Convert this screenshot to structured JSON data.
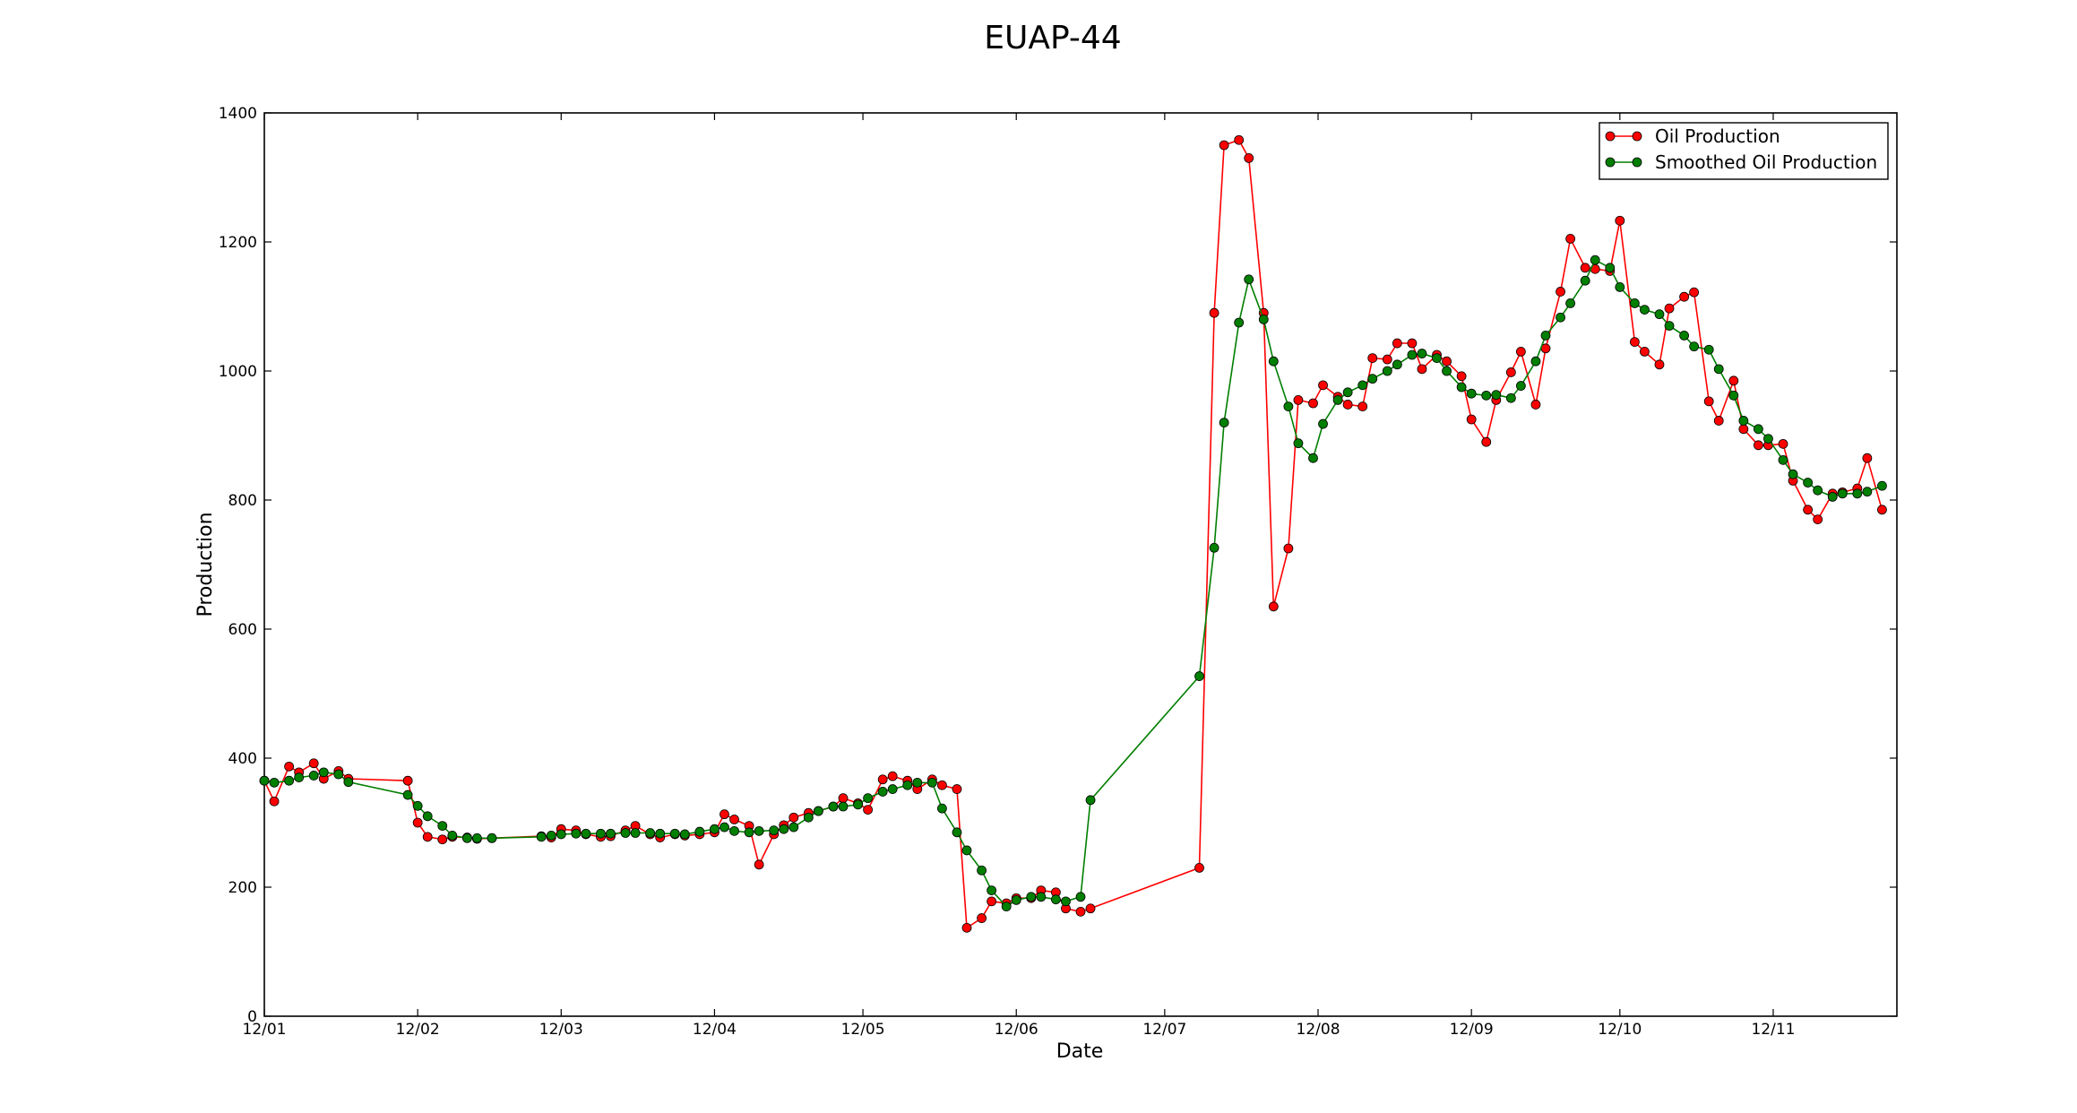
{
  "chart_data": {
    "type": "line",
    "title": "EUAP-44",
    "xlabel": "Date",
    "ylabel": "Production",
    "xlim": [
      "2012-01-01",
      "2012-11-26"
    ],
    "ylim": [
      0,
      1400
    ],
    "x_tick_values": [
      "2012-01-01",
      "2012-02-01",
      "2012-03-01",
      "2012-04-01",
      "2012-05-01",
      "2012-06-01",
      "2012-07-01",
      "2012-08-01",
      "2012-09-01",
      "2012-10-01",
      "2012-11-01"
    ],
    "x_tick_labels": [
      "12/01",
      "12/02",
      "12/03",
      "12/04",
      "12/05",
      "12/06",
      "12/07",
      "12/08",
      "12/09",
      "12/10",
      "12/11"
    ],
    "y_ticks": [
      0,
      200,
      400,
      600,
      800,
      1000,
      1200,
      1400
    ],
    "grid": false,
    "legend": "top-right",
    "series": [
      {
        "name": "Oil Production",
        "color": "#ff0000",
        "marker": "circle",
        "points": [
          [
            "2012-01-01",
            365
          ],
          [
            "2012-01-03",
            333
          ],
          [
            "2012-01-06",
            387
          ],
          [
            "2012-01-08",
            378
          ],
          [
            "2012-01-11",
            392
          ],
          [
            "2012-01-13",
            368
          ],
          [
            "2012-01-16",
            380
          ],
          [
            "2012-01-18",
            368
          ],
          [
            "2012-01-30",
            365
          ],
          [
            "2012-02-01",
            300
          ],
          [
            "2012-02-03",
            278
          ],
          [
            "2012-02-06",
            274
          ],
          [
            "2012-02-08",
            278
          ],
          [
            "2012-02-11",
            277
          ],
          [
            "2012-02-13",
            275
          ],
          [
            "2012-02-16",
            276
          ],
          [
            "2012-02-26",
            279
          ],
          [
            "2012-02-28",
            277
          ],
          [
            "2012-03-01",
            290
          ],
          [
            "2012-03-04",
            288
          ],
          [
            "2012-03-06",
            282
          ],
          [
            "2012-03-09",
            278
          ],
          [
            "2012-03-11",
            279
          ],
          [
            "2012-03-14",
            288
          ],
          [
            "2012-03-16",
            295
          ],
          [
            "2012-03-19",
            282
          ],
          [
            "2012-03-21",
            277
          ],
          [
            "2012-03-24",
            282
          ],
          [
            "2012-03-26",
            280
          ],
          [
            "2012-03-29",
            282
          ],
          [
            "2012-04-01",
            285
          ],
          [
            "2012-04-03",
            313
          ],
          [
            "2012-04-05",
            305
          ],
          [
            "2012-04-08",
            295
          ],
          [
            "2012-04-10",
            235
          ],
          [
            "2012-04-13",
            282
          ],
          [
            "2012-04-15",
            296
          ],
          [
            "2012-04-17",
            308
          ],
          [
            "2012-04-20",
            315
          ],
          [
            "2012-04-22",
            318
          ],
          [
            "2012-04-25",
            325
          ],
          [
            "2012-04-27",
            338
          ],
          [
            "2012-04-30",
            330
          ],
          [
            "2012-05-02",
            320
          ],
          [
            "2012-05-05",
            367
          ],
          [
            "2012-05-07",
            372
          ],
          [
            "2012-05-10",
            365
          ],
          [
            "2012-05-12",
            352
          ],
          [
            "2012-05-15",
            367
          ],
          [
            "2012-05-17",
            358
          ],
          [
            "2012-05-20",
            352
          ],
          [
            "2012-05-22",
            137
          ],
          [
            "2012-05-25",
            152
          ],
          [
            "2012-05-27",
            178
          ],
          [
            "2012-05-30",
            175
          ],
          [
            "2012-06-01",
            183
          ],
          [
            "2012-06-04",
            183
          ],
          [
            "2012-06-06",
            195
          ],
          [
            "2012-06-09",
            192
          ],
          [
            "2012-06-11",
            167
          ],
          [
            "2012-06-14",
            162
          ],
          [
            "2012-06-16",
            167
          ],
          [
            "2012-07-08",
            230
          ],
          [
            "2012-07-11",
            1090
          ],
          [
            "2012-07-13",
            1350
          ],
          [
            "2012-07-16",
            1358
          ],
          [
            "2012-07-18",
            1330
          ],
          [
            "2012-07-21",
            1090
          ],
          [
            "2012-07-23",
            635
          ],
          [
            "2012-07-26",
            725
          ],
          [
            "2012-07-28",
            955
          ],
          [
            "2012-07-31",
            950
          ],
          [
            "2012-08-02",
            978
          ],
          [
            "2012-08-05",
            960
          ],
          [
            "2012-08-07",
            948
          ],
          [
            "2012-08-10",
            945
          ],
          [
            "2012-08-12",
            1020
          ],
          [
            "2012-08-15",
            1018
          ],
          [
            "2012-08-17",
            1043
          ],
          [
            "2012-08-20",
            1043
          ],
          [
            "2012-08-22",
            1003
          ],
          [
            "2012-08-25",
            1025
          ],
          [
            "2012-08-27",
            1015
          ],
          [
            "2012-08-30",
            992
          ],
          [
            "2012-09-01",
            925
          ],
          [
            "2012-09-04",
            890
          ],
          [
            "2012-09-06",
            955
          ],
          [
            "2012-09-09",
            998
          ],
          [
            "2012-09-11",
            1030
          ],
          [
            "2012-09-14",
            948
          ],
          [
            "2012-09-16",
            1035
          ],
          [
            "2012-09-19",
            1123
          ],
          [
            "2012-09-21",
            1205
          ],
          [
            "2012-09-24",
            1160
          ],
          [
            "2012-09-26",
            1158
          ],
          [
            "2012-09-29",
            1155
          ],
          [
            "2012-10-01",
            1233
          ],
          [
            "2012-10-04",
            1045
          ],
          [
            "2012-10-06",
            1030
          ],
          [
            "2012-10-09",
            1010
          ],
          [
            "2012-10-11",
            1097
          ],
          [
            "2012-10-14",
            1115
          ],
          [
            "2012-10-16",
            1122
          ],
          [
            "2012-10-19",
            953
          ],
          [
            "2012-10-21",
            923
          ],
          [
            "2012-10-24",
            985
          ],
          [
            "2012-10-26",
            910
          ],
          [
            "2012-10-29",
            885
          ],
          [
            "2012-10-31",
            885
          ],
          [
            "2012-11-03",
            887
          ],
          [
            "2012-11-05",
            830
          ],
          [
            "2012-11-08",
            785
          ],
          [
            "2012-11-10",
            770
          ],
          [
            "2012-11-13",
            810
          ],
          [
            "2012-11-15",
            812
          ],
          [
            "2012-11-18",
            818
          ],
          [
            "2012-11-20",
            865
          ],
          [
            "2012-11-23",
            785
          ]
        ]
      },
      {
        "name": "Smoothed Oil Production",
        "color": "#007f00",
        "marker": "circle",
        "points": [
          [
            "2012-01-01",
            365
          ],
          [
            "2012-01-03",
            362
          ],
          [
            "2012-01-06",
            365
          ],
          [
            "2012-01-08",
            370
          ],
          [
            "2012-01-11",
            373
          ],
          [
            "2012-01-13",
            378
          ],
          [
            "2012-01-16",
            375
          ],
          [
            "2012-01-18",
            363
          ],
          [
            "2012-01-30",
            343
          ],
          [
            "2012-02-01",
            326
          ],
          [
            "2012-02-03",
            310
          ],
          [
            "2012-02-06",
            295
          ],
          [
            "2012-02-08",
            280
          ],
          [
            "2012-02-11",
            276
          ],
          [
            "2012-02-13",
            276
          ],
          [
            "2012-02-16",
            276
          ],
          [
            "2012-02-26",
            278
          ],
          [
            "2012-02-28",
            280
          ],
          [
            "2012-03-01",
            282
          ],
          [
            "2012-03-04",
            283
          ],
          [
            "2012-03-06",
            283
          ],
          [
            "2012-03-09",
            283
          ],
          [
            "2012-03-11",
            283
          ],
          [
            "2012-03-14",
            284
          ],
          [
            "2012-03-16",
            284
          ],
          [
            "2012-03-19",
            284
          ],
          [
            "2012-03-21",
            283
          ],
          [
            "2012-03-24",
            283
          ],
          [
            "2012-03-26",
            282
          ],
          [
            "2012-03-29",
            286
          ],
          [
            "2012-04-01",
            290
          ],
          [
            "2012-04-03",
            293
          ],
          [
            "2012-04-05",
            287
          ],
          [
            "2012-04-08",
            285
          ],
          [
            "2012-04-10",
            287
          ],
          [
            "2012-04-13",
            288
          ],
          [
            "2012-04-15",
            290
          ],
          [
            "2012-04-17",
            293
          ],
          [
            "2012-04-20",
            308
          ],
          [
            "2012-04-22",
            318
          ],
          [
            "2012-04-25",
            325
          ],
          [
            "2012-04-27",
            325
          ],
          [
            "2012-04-30",
            328
          ],
          [
            "2012-05-02",
            338
          ],
          [
            "2012-05-05",
            348
          ],
          [
            "2012-05-07",
            352
          ],
          [
            "2012-05-10",
            358
          ],
          [
            "2012-05-12",
            362
          ],
          [
            "2012-05-15",
            362
          ],
          [
            "2012-05-17",
            322
          ],
          [
            "2012-05-20",
            285
          ],
          [
            "2012-05-22",
            257
          ],
          [
            "2012-05-25",
            226
          ],
          [
            "2012-05-27",
            195
          ],
          [
            "2012-05-30",
            170
          ],
          [
            "2012-06-01",
            180
          ],
          [
            "2012-06-04",
            185
          ],
          [
            "2012-06-06",
            185
          ],
          [
            "2012-06-09",
            181
          ],
          [
            "2012-06-11",
            178
          ],
          [
            "2012-06-14",
            185
          ],
          [
            "2012-06-16",
            335
          ],
          [
            "2012-07-08",
            527
          ],
          [
            "2012-07-11",
            726
          ],
          [
            "2012-07-13",
            920
          ],
          [
            "2012-07-16",
            1075
          ],
          [
            "2012-07-18",
            1142
          ],
          [
            "2012-07-21",
            1080
          ],
          [
            "2012-07-23",
            1015
          ],
          [
            "2012-07-26",
            945
          ],
          [
            "2012-07-28",
            888
          ],
          [
            "2012-07-31",
            865
          ],
          [
            "2012-08-02",
            918
          ],
          [
            "2012-08-05",
            955
          ],
          [
            "2012-08-07",
            967
          ],
          [
            "2012-08-10",
            978
          ],
          [
            "2012-08-12",
            988
          ],
          [
            "2012-08-15",
            1000
          ],
          [
            "2012-08-17",
            1010
          ],
          [
            "2012-08-20",
            1025
          ],
          [
            "2012-08-22",
            1027
          ],
          [
            "2012-08-25",
            1020
          ],
          [
            "2012-08-27",
            1000
          ],
          [
            "2012-08-30",
            975
          ],
          [
            "2012-09-01",
            965
          ],
          [
            "2012-09-04",
            962
          ],
          [
            "2012-09-06",
            963
          ],
          [
            "2012-09-09",
            958
          ],
          [
            "2012-09-11",
            977
          ],
          [
            "2012-09-14",
            1015
          ],
          [
            "2012-09-16",
            1055
          ],
          [
            "2012-09-19",
            1083
          ],
          [
            "2012-09-21",
            1105
          ],
          [
            "2012-09-24",
            1140
          ],
          [
            "2012-09-26",
            1172
          ],
          [
            "2012-09-29",
            1160
          ],
          [
            "2012-10-01",
            1130
          ],
          [
            "2012-10-04",
            1105
          ],
          [
            "2012-10-06",
            1095
          ],
          [
            "2012-10-09",
            1088
          ],
          [
            "2012-10-11",
            1070
          ],
          [
            "2012-10-14",
            1055
          ],
          [
            "2012-10-16",
            1038
          ],
          [
            "2012-10-19",
            1033
          ],
          [
            "2012-10-21",
            1003
          ],
          [
            "2012-10-24",
            962
          ],
          [
            "2012-10-26",
            923
          ],
          [
            "2012-10-29",
            910
          ],
          [
            "2012-10-31",
            895
          ],
          [
            "2012-11-03",
            862
          ],
          [
            "2012-11-05",
            840
          ],
          [
            "2012-11-08",
            827
          ],
          [
            "2012-11-10",
            815
          ],
          [
            "2012-11-13",
            805
          ],
          [
            "2012-11-15",
            810
          ],
          [
            "2012-11-18",
            810
          ],
          [
            "2012-11-20",
            813
          ],
          [
            "2012-11-23",
            822
          ]
        ]
      }
    ]
  }
}
